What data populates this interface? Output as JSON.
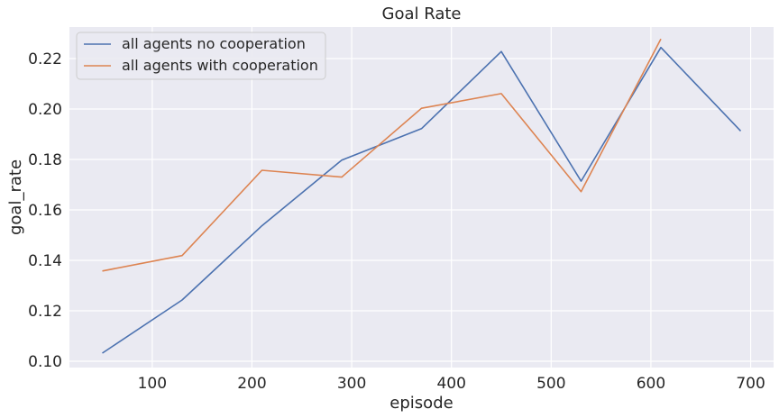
{
  "chart_data": {
    "type": "line",
    "title": "Goal Rate",
    "xlabel": "episode",
    "ylabel": "goal_rate",
    "xlim": [
      17,
      723
    ],
    "ylim": [
      0.0975,
      0.2325
    ],
    "xticks": [
      100,
      200,
      300,
      400,
      500,
      600,
      700
    ],
    "yticks": [
      0.1,
      0.12,
      0.14,
      0.16,
      0.18,
      0.2,
      0.22
    ],
    "ytick_labels": [
      "0.10",
      "0.12",
      "0.14",
      "0.16",
      "0.18",
      "0.20",
      "0.22"
    ],
    "grid": true,
    "legend_position": "upper-left",
    "background": "#eaeaf2",
    "series": [
      {
        "name": "all agents no cooperation",
        "color": "#4c72b0",
        "x": [
          50,
          130,
          210,
          290,
          370,
          450,
          530,
          610,
          690
        ],
        "y": [
          0.1032,
          0.1243,
          0.1537,
          0.1797,
          0.1922,
          0.2228,
          0.1714,
          0.2244,
          0.1913
        ]
      },
      {
        "name": "all agents with cooperation",
        "color": "#dd8452",
        "x": [
          50,
          130,
          210,
          290,
          370,
          450,
          530,
          610
        ],
        "y": [
          0.1358,
          0.1419,
          0.1757,
          0.173,
          0.2003,
          0.2061,
          0.1672,
          0.2278
        ]
      }
    ]
  }
}
